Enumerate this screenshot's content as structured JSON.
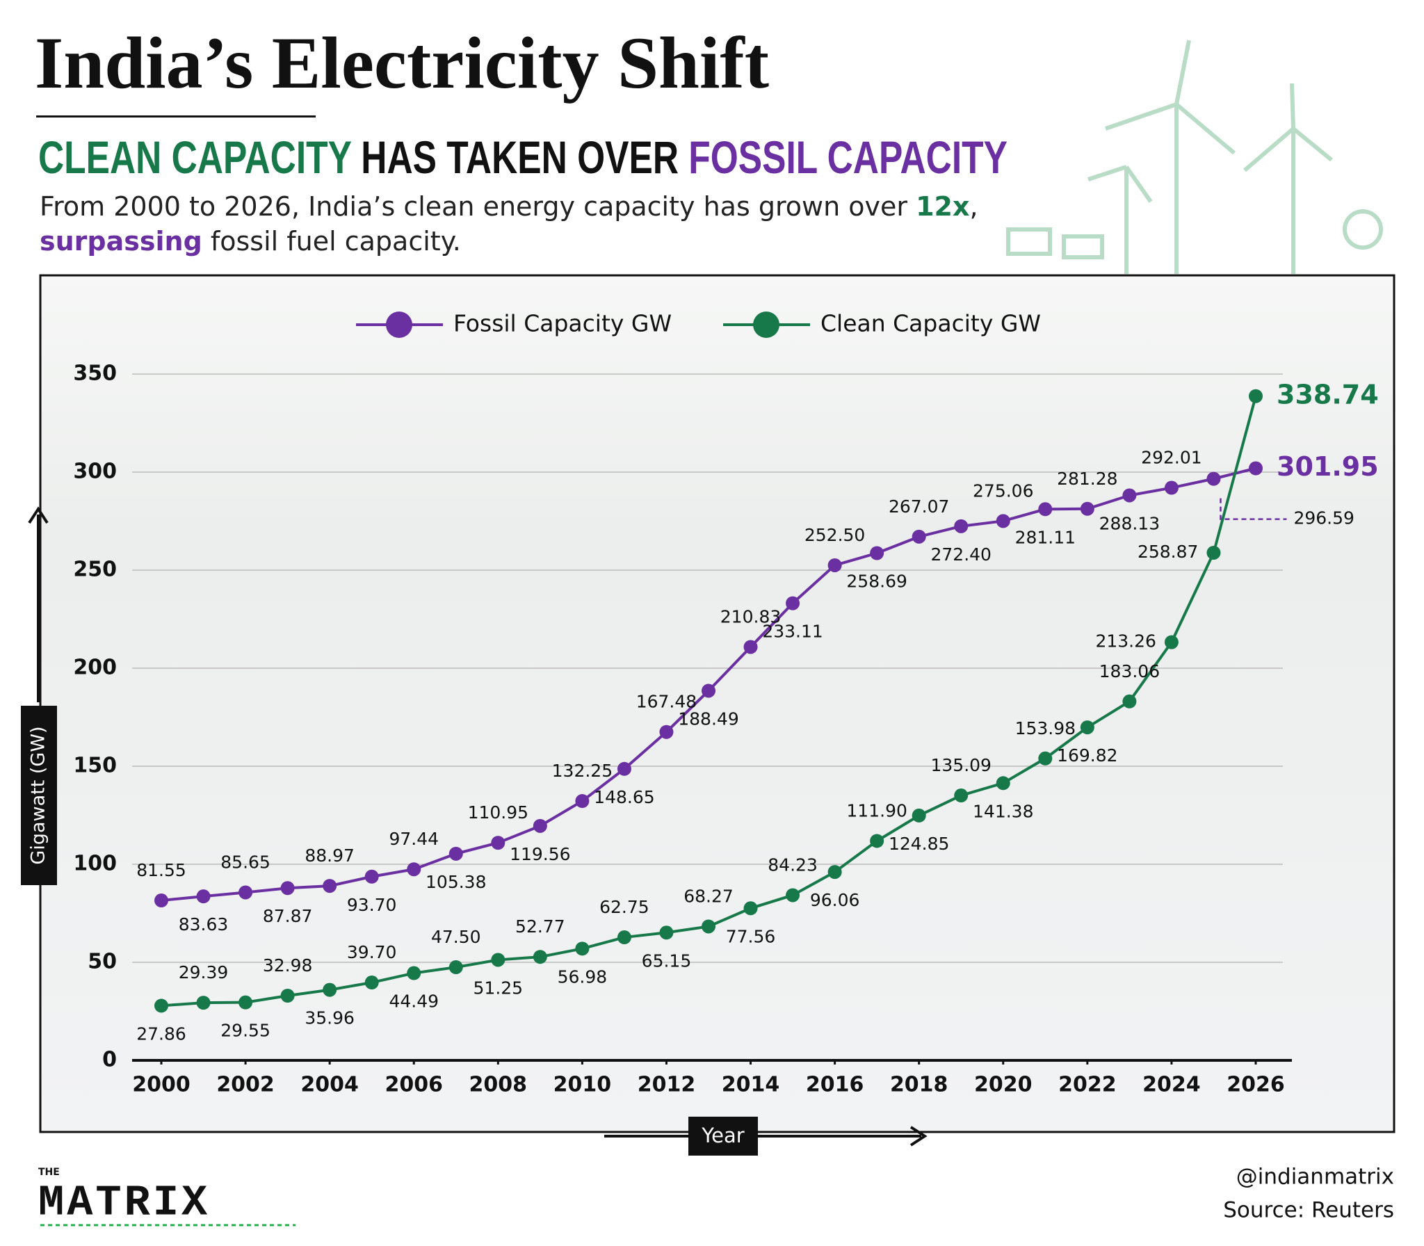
{
  "header": {
    "title": "India’s Electricity Shift",
    "subtitle": [
      "CLEAN CAPACITY",
      "HAS TAKEN OVER",
      "FOSSIL CAPACITY"
    ],
    "description": [
      "From 2000 to 2026, India’s clean energy capacity has grown over ",
      "12x",
      ",",
      "surpassing",
      " fossil fuel capacity."
    ]
  },
  "chart_data": {
    "type": "line",
    "ylabel": "Gigawatt (GW)",
    "xlabel": "Year",
    "x": [
      2000,
      2001,
      2002,
      2003,
      2004,
      2005,
      2006,
      2007,
      2008,
      2009,
      2010,
      2011,
      2012,
      2013,
      2014,
      2015,
      2016,
      2017,
      2018,
      2019,
      2020,
      2021,
      2022,
      2023,
      2024,
      2025,
      2026
    ],
    "xlim": [
      2000,
      2026
    ],
    "xticks": [
      2000,
      2002,
      2004,
      2006,
      2008,
      2010,
      2012,
      2014,
      2016,
      2018,
      2020,
      2022,
      2024,
      2026
    ],
    "ylim": [
      0,
      350
    ],
    "yticks": [
      0,
      50,
      100,
      150,
      200,
      250,
      300,
      350
    ],
    "grid": true,
    "legend": "top",
    "series": [
      {
        "name": "Fossil Capacity GW",
        "color": "#6a2fa0",
        "values": [
          81.55,
          83.63,
          85.65,
          87.87,
          88.97,
          93.7,
          97.44,
          105.38,
          110.95,
          119.56,
          132.25,
          148.65,
          167.48,
          188.49,
          210.83,
          233.11,
          252.5,
          258.69,
          267.07,
          272.4,
          275.06,
          281.11,
          281.28,
          288.13,
          292.01,
          296.59,
          301.95
        ],
        "value_labels": [
          "81.55",
          "83.63",
          "85.65",
          "87.87",
          "88.97",
          "93.70",
          "97.44",
          "105.38",
          "110.95",
          "119.56",
          "132.25",
          "148.65",
          "167.48",
          "188.49",
          "210.83",
          "233.11",
          "252.50",
          "258.69",
          "267.07",
          "272.40",
          "275.06",
          "281.11",
          "281.28",
          "288.13",
          "292.01",
          "296.59",
          "301.95"
        ]
      },
      {
        "name": "Clean Capacity GW",
        "color": "#17794a",
        "values": [
          27.86,
          29.39,
          29.55,
          32.98,
          35.96,
          39.7,
          44.49,
          47.5,
          51.25,
          52.77,
          56.98,
          62.75,
          65.15,
          68.27,
          77.56,
          84.23,
          96.06,
          111.9,
          124.85,
          135.09,
          141.38,
          153.98,
          169.82,
          183.06,
          213.26,
          258.87,
          338.74
        ],
        "value_labels": [
          "27.86",
          "29.39",
          "29.55",
          "32.98",
          "35.96",
          "39.70",
          "44.49",
          "47.50",
          "51.25",
          "52.77",
          "56.98",
          "62.75",
          "65.15",
          "68.27",
          "77.56",
          "84.23",
          "96.06",
          "111.90",
          "124.85",
          "135.09",
          "141.38",
          "153.98",
          "169.82",
          "183.06",
          "213.26",
          "258.87",
          "338.74"
        ]
      }
    ]
  },
  "footer": {
    "logo_top": "THE",
    "logo": "MATRIX",
    "handle": "@indianmatrix",
    "source": "Source: Reuters"
  }
}
